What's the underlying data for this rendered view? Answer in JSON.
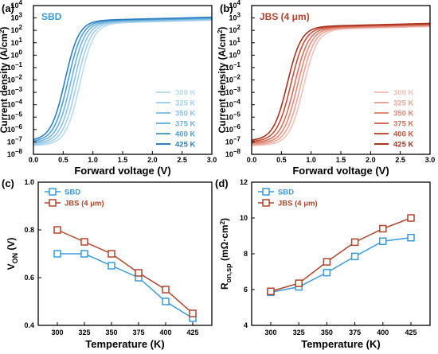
{
  "chart_data": [
    {
      "panel": "(a)",
      "type": "line",
      "tag": "SBD",
      "xlabel": "Forward voltage (V)",
      "ylabel": "Current density (A/cm²)",
      "xlim": [
        0,
        3.0
      ],
      "ylim_log10": [
        -8,
        4
      ],
      "yscale": "log",
      "x_ticks": [
        "0.0",
        "0.5",
        "1.0",
        "1.5",
        "2.0",
        "2.5",
        "3.0"
      ],
      "legend_position": "bottom-right",
      "series": [
        {
          "name": "300 K",
          "color": "#b9dcef",
          "v_half": 0.78
        },
        {
          "name": "325 K",
          "color": "#a3d0ea",
          "v_half": 0.73
        },
        {
          "name": "350 K",
          "color": "#8cc3e4",
          "v_half": 0.68
        },
        {
          "name": "375 K",
          "color": "#6fb2dc",
          "v_half": 0.63
        },
        {
          "name": "400 K",
          "color": "#4f9dd2",
          "v_half": 0.58
        },
        {
          "name": "425 K",
          "color": "#2c7fc2",
          "v_half": 0.53
        }
      ]
    },
    {
      "panel": "(b)",
      "type": "line",
      "tag": "JBS (4 μm)",
      "xlabel": "Forward voltage (V)",
      "ylabel": "Current density (A/cm²)",
      "xlim": [
        0,
        3.0
      ],
      "ylim_log10": [
        -8,
        4
      ],
      "yscale": "log",
      "x_ticks": [
        "0.0",
        "0.5",
        "1.0",
        "1.5",
        "2.0",
        "2.5",
        "3.0"
      ],
      "legend_position": "bottom-right",
      "series": [
        {
          "name": "300 K",
          "color": "#f2c1b9",
          "v_half": 0.87
        },
        {
          "name": "325 K",
          "color": "#eaa598",
          "v_half": 0.82
        },
        {
          "name": "350 K",
          "color": "#e08a7a",
          "v_half": 0.77
        },
        {
          "name": "375 K",
          "color": "#d46e5c",
          "v_half": 0.72
        },
        {
          "name": "400 K",
          "color": "#c54e3a",
          "v_half": 0.66
        },
        {
          "name": "425 K",
          "color": "#a8321d",
          "v_half": 0.6
        }
      ]
    },
    {
      "panel": "(c)",
      "type": "line",
      "xlabel": "Temperature (K)",
      "ylabel": "V_ON (V)",
      "categories": [
        300,
        325,
        350,
        375,
        400,
        425
      ],
      "ylim": [
        0.4,
        1.0
      ],
      "y_ticks": [
        "0.4",
        "0.6",
        "0.8",
        "1.0"
      ],
      "legend_position": "top-left",
      "series": [
        {
          "name": "SBD",
          "color": "#3a9ad8",
          "values": [
            0.7,
            0.7,
            0.65,
            0.6,
            0.5,
            0.43
          ]
        },
        {
          "name": "JBS (4 μm)",
          "color": "#b0452c",
          "values": [
            0.8,
            0.75,
            0.7,
            0.62,
            0.55,
            0.45
          ]
        }
      ]
    },
    {
      "panel": "(d)",
      "type": "line",
      "xlabel": "Temperature (K)",
      "ylabel": "R_on,sp (mΩ·cm²)",
      "categories": [
        300,
        325,
        350,
        375,
        400,
        425
      ],
      "ylim": [
        4,
        12
      ],
      "y_ticks": [
        "4",
        "6",
        "8",
        "10",
        "12"
      ],
      "legend_position": "top-left",
      "series": [
        {
          "name": "SBD",
          "color": "#3a9ad8",
          "values": [
            5.85,
            6.15,
            6.95,
            7.85,
            8.7,
            8.9
          ]
        },
        {
          "name": "JBS (4 μm)",
          "color": "#b0452c",
          "values": [
            5.9,
            6.35,
            7.55,
            8.65,
            9.4,
            10.0
          ]
        }
      ]
    }
  ]
}
